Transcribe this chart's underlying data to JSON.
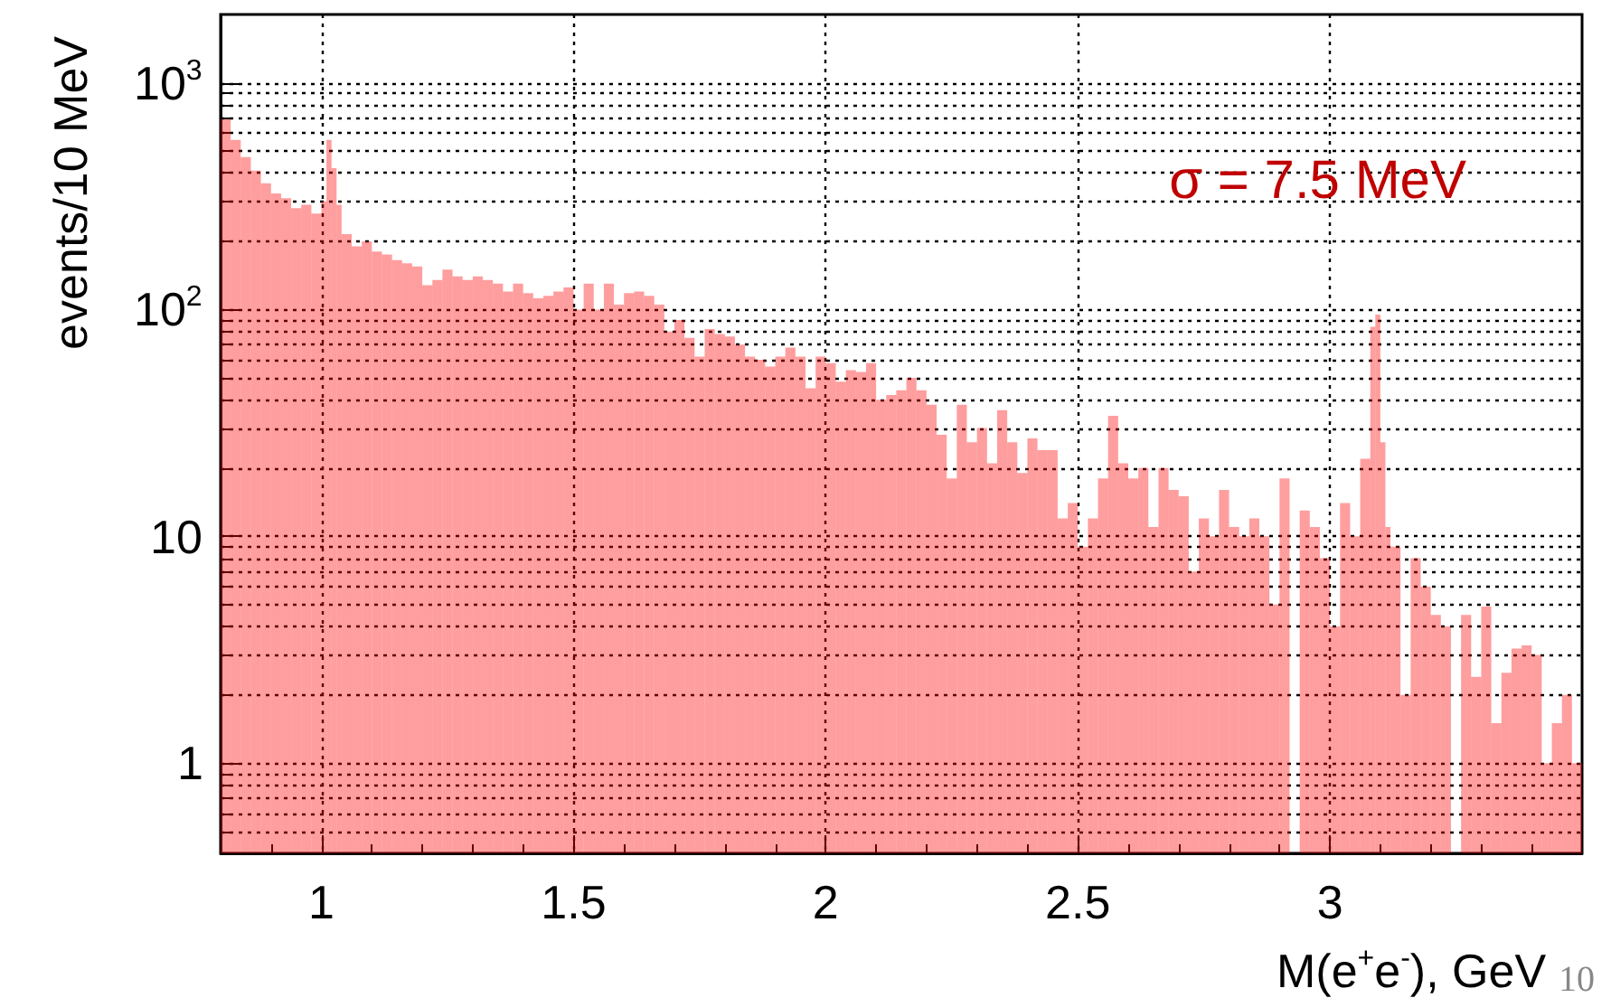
{
  "chart_data": {
    "type": "histogram",
    "xlabel": "M(e$^{+}$e$^{-}$), GeV",
    "ylabel": "events/10 MeV",
    "log": "y",
    "grid": true,
    "color": "#ff0000",
    "xlim": [
      0.8,
      3.5
    ],
    "xticks": [
      1,
      1.5,
      2,
      2.5,
      3
    ],
    "ylim": [
      0.4,
      2000
    ],
    "yticks": [
      1,
      10,
      {
        "value": 100,
        "label": "10$^{2}$"
      },
      {
        "value": 1000,
        "label": "10$^{3}$"
      }
    ],
    "annotations": [
      "σ = 7.5 MeV",
      "10"
    ],
    "bins": [
      0.8,
      0.82,
      0.84,
      0.86,
      0.88,
      0.9,
      0.92,
      0.94,
      0.96,
      0.98,
      1,
      1.01,
      1.02,
      1.03,
      1.04,
      1.06,
      1.08,
      1.1,
      1.12,
      1.14,
      1.16,
      1.18,
      1.2,
      1.22,
      1.24,
      1.26,
      1.28,
      1.3,
      1.32,
      1.34,
      1.36,
      1.38,
      1.4,
      1.42,
      1.44,
      1.46,
      1.48,
      1.5,
      1.52,
      1.54,
      1.56,
      1.58,
      1.6,
      1.62,
      1.64,
      1.66,
      1.68,
      1.7,
      1.72,
      1.74,
      1.76,
      1.78,
      1.8,
      1.82,
      1.84,
      1.86,
      1.88,
      1.9,
      1.92,
      1.94,
      1.96,
      1.98,
      2,
      2.02,
      2.04,
      2.06,
      2.08,
      2.1,
      2.12,
      2.14,
      2.16,
      2.18,
      2.2,
      2.22,
      2.24,
      2.26,
      2.28,
      2.3,
      2.32,
      2.34,
      2.36,
      2.38,
      2.4,
      2.42,
      2.44,
      2.46,
      2.48,
      2.5,
      2.52,
      2.54,
      2.56,
      2.58,
      2.6,
      2.62,
      2.64,
      2.66,
      2.68,
      2.7,
      2.72,
      2.74,
      2.76,
      2.78,
      2.8,
      2.82,
      2.84,
      2.86,
      2.88,
      2.9,
      2.92,
      2.94,
      2.96,
      2.98,
      3,
      3.02,
      3.04,
      3.06,
      3.08,
      3.09,
      3.1,
      3.11,
      3.12,
      3.14,
      3.16,
      3.18,
      3.2,
      3.22,
      3.24,
      3.26,
      3.28,
      3.3,
      3.32,
      3.34,
      3.36,
      3.38,
      3.4,
      3.42,
      3.44,
      3.46,
      3.48,
      3.5
    ],
    "values": [
      690,
      560,
      470,
      410,
      360,
      325,
      310,
      280,
      290,
      265,
      300,
      560,
      420,
      290,
      215,
      190,
      200,
      180,
      175,
      165,
      160,
      155,
      128,
      135,
      150,
      140,
      135,
      140,
      135,
      130,
      120,
      130,
      118,
      112,
      115,
      120,
      125,
      100,
      130,
      100,
      130,
      105,
      118,
      120,
      115,
      105,
      80,
      90,
      75,
      62,
      82,
      78,
      76,
      70,
      62,
      60,
      56,
      62,
      68,
      62,
      45,
      62,
      58,
      48,
      54,
      53,
      58,
      40,
      42,
      44,
      50,
      44,
      38,
      28,
      18,
      38,
      26,
      30,
      21,
      36,
      26,
      19,
      27,
      24,
      24,
      12,
      14,
      9,
      12,
      18,
      34,
      21,
      18,
      20,
      11,
      20,
      16,
      15,
      7,
      12,
      10,
      16,
      11,
      10,
      12,
      10,
      5,
      18,
      null,
      13,
      11,
      8,
      4,
      14,
      10,
      22,
      84,
      95,
      26,
      11,
      9,
      2,
      8,
      6,
      4.5,
      4,
      null,
      4.5,
      2.4,
      4.9,
      1.5,
      2.5,
      3.2,
      3.3,
      3,
      1,
      1.5,
      2,
      1
    ]
  }
}
